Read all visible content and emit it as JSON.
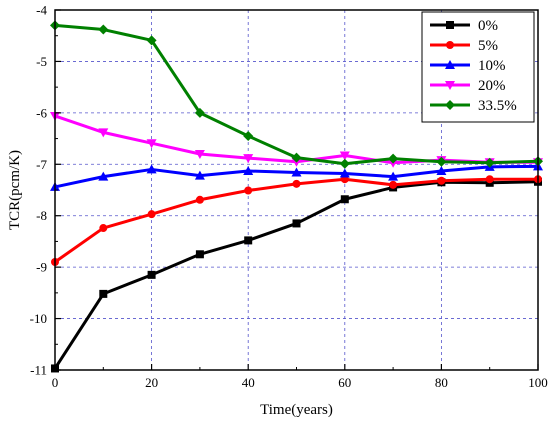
{
  "chart_data": {
    "type": "line",
    "title": "",
    "xlabel": "Time(years)",
    "ylabel": "TCR(pcm/K)",
    "xlim": [
      0,
      100
    ],
    "ylim": [
      -11,
      -4
    ],
    "xticks": [
      0,
      20,
      40,
      60,
      80,
      100
    ],
    "yticks": [
      -11,
      -10,
      -9,
      -8,
      -7,
      -6,
      -5,
      -4
    ],
    "grid": true,
    "legend_position": "top-right",
    "x": [
      0,
      10,
      20,
      30,
      40,
      50,
      60,
      70,
      80,
      90,
      100
    ],
    "series": [
      {
        "name": "0%",
        "color": "#000000",
        "marker": "square",
        "values": [
          -10.97,
          -9.52,
          -9.15,
          -8.75,
          -8.48,
          -8.15,
          -7.68,
          -7.45,
          -7.35,
          -7.36,
          -7.34
        ]
      },
      {
        "name": "5%",
        "color": "#ff0000",
        "marker": "circle",
        "values": [
          -8.9,
          -8.24,
          -7.97,
          -7.69,
          -7.51,
          -7.38,
          -7.29,
          -7.4,
          -7.32,
          -7.29,
          -7.29
        ]
      },
      {
        "name": "10%",
        "color": "#0000ff",
        "marker": "triangle-up",
        "values": [
          -7.44,
          -7.24,
          -7.1,
          -7.22,
          -7.13,
          -7.16,
          -7.18,
          -7.24,
          -7.13,
          -7.05,
          -7.04
        ]
      },
      {
        "name": "20%",
        "color": "#ff00ff",
        "marker": "triangle-down",
        "values": [
          -6.06,
          -6.38,
          -6.59,
          -6.8,
          -6.88,
          -6.95,
          -6.83,
          -6.97,
          -6.92,
          -6.96,
          -6.96
        ]
      },
      {
        "name": "33.5%",
        "color": "#008000",
        "marker": "diamond",
        "values": [
          -4.3,
          -4.38,
          -4.59,
          -6.0,
          -6.45,
          -6.87,
          -6.99,
          -6.89,
          -6.95,
          -6.97,
          -6.94
        ]
      }
    ]
  }
}
